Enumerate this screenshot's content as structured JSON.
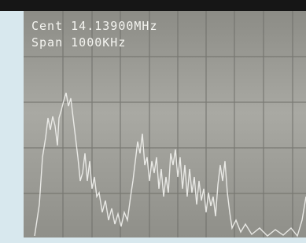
{
  "screen": {
    "center_label": "Cent 14.13900MHz",
    "span_label": "Span 1000KHz"
  }
}
